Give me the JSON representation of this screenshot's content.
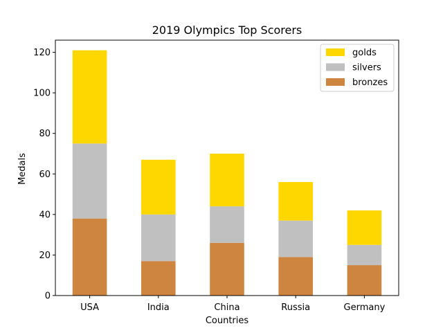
{
  "chart_data": {
    "type": "bar",
    "stacked": true,
    "title": "2019 Olympics Top Scorers",
    "xlabel": "Countries",
    "ylabel": "Medals",
    "categories": [
      "USA",
      "India",
      "China",
      "Russia",
      "Germany"
    ],
    "series": [
      {
        "name": "bronzes",
        "color": "#cd853f",
        "values": [
          38,
          17,
          26,
          19,
          15
        ]
      },
      {
        "name": "silvers",
        "color": "#c0c0c0",
        "values": [
          37,
          23,
          18,
          18,
          10
        ]
      },
      {
        "name": "golds",
        "color": "#ffd700",
        "values": [
          46,
          27,
          26,
          19,
          17
        ]
      }
    ],
    "legend_order": [
      "golds",
      "silvers",
      "bronzes"
    ],
    "ylim": [
      0,
      126
    ],
    "yticks": [
      0,
      20,
      40,
      60,
      80,
      100,
      120
    ],
    "legend_position": "top-right",
    "grid": false
  }
}
